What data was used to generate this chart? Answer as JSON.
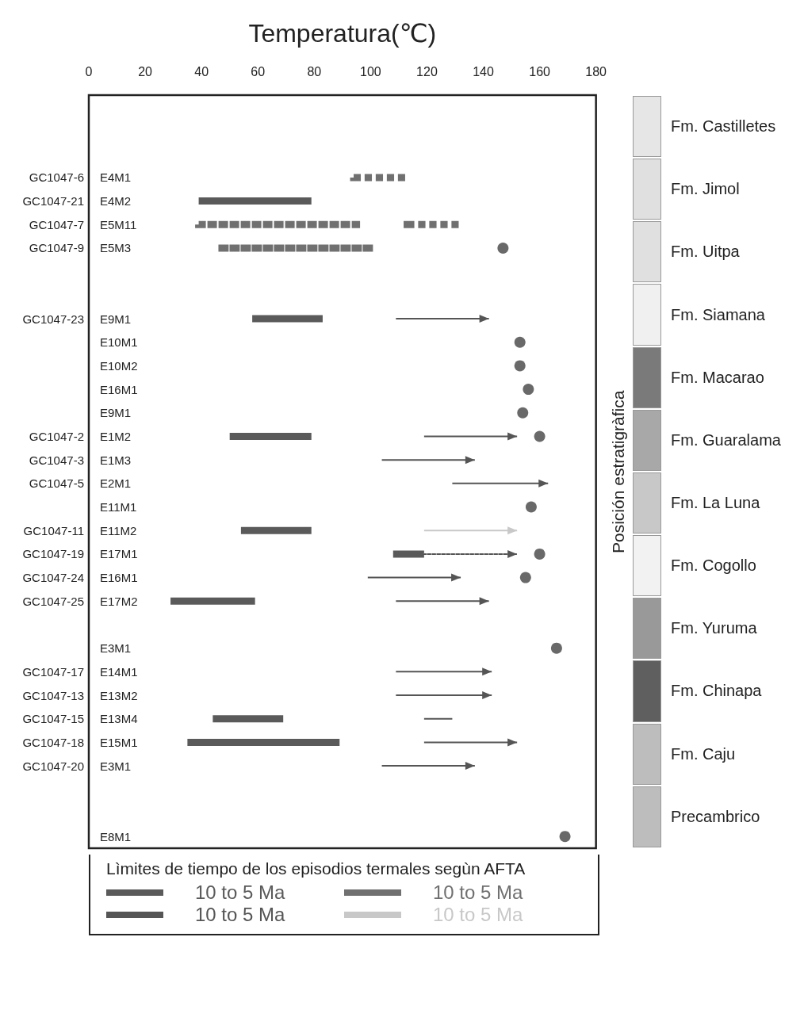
{
  "chart_data": [
    {
      "type": "bar",
      "orientation": "horizontal",
      "xlabel": "Temperatura(℃)",
      "xlim": [
        0,
        180
      ],
      "xticks": [
        0,
        20,
        40,
        60,
        80,
        100,
        120,
        140,
        160,
        180
      ],
      "grid": false,
      "legend": "bottom",
      "legend_title": "Lìmites de tiempo de los episodios termales segùn AFTA",
      "categories": [
        null,
        null,
        null,
        "E4M1",
        "E4M2",
        "E5M11",
        "E5M3",
        null,
        null,
        "E9M1",
        "E10M1",
        "E10M2",
        "E16M1",
        "E9M1",
        "E1M2",
        "E1M3",
        "E2M1",
        "E11M1",
        "E11M2",
        "E17M1",
        "E16M1",
        "E17M2",
        null,
        "E3M1",
        "E14M1",
        "E13M2",
        "E13M4",
        "E15M1",
        "E3M1",
        null,
        null,
        "E8M1"
      ],
      "y2_categories": [
        null,
        null,
        null,
        "GC1047-6",
        "GC1047-21",
        "GC1047-7",
        "GC1047-9",
        null,
        null,
        "GC1047-23",
        null,
        null,
        null,
        null,
        "GC1047-2",
        "GC1047-3",
        "GC1047-5",
        null,
        "GC1047-11",
        "GC1047-19",
        "GC1047-24",
        "GC1047-25",
        null,
        null,
        "GC1047-17",
        "GC1047-13",
        "GC1047-15",
        "GC1047-18",
        "GC1047-20",
        null,
        null,
        null
      ],
      "series": [
        {
          "name": "10 to 5 Ma",
          "color": "#5a5a5a",
          "base": [
            null,
            null,
            null,
            null,
            39,
            null,
            null,
            null,
            null,
            58,
            null,
            null,
            null,
            null,
            50,
            null,
            null,
            null,
            54,
            108,
            null,
            29,
            null,
            null,
            null,
            null,
            44,
            35,
            null,
            null,
            null,
            null
          ],
          "values": [
            null,
            null,
            null,
            null,
            40,
            null,
            null,
            null,
            null,
            25,
            null,
            null,
            null,
            null,
            29,
            null,
            null,
            null,
            25,
            11,
            null,
            30,
            null,
            null,
            null,
            null,
            25,
            54,
            null,
            null,
            null,
            null
          ]
        },
        {
          "name": "10 to 5 Ma",
          "color": "#707070",
          "line_style": "dashed",
          "base": [
            null,
            null,
            null,
            94,
            null,
            39,
            46,
            null,
            null,
            null,
            null,
            null,
            null,
            null,
            null,
            null,
            null,
            null,
            null,
            null,
            null,
            null,
            null,
            null,
            null,
            null,
            null,
            null,
            null,
            null,
            null,
            null
          ],
          "values": [
            null,
            null,
            null,
            17,
            null,
            56,
            55,
            null,
            null,
            null,
            null,
            null,
            null,
            null,
            null,
            null,
            null,
            null,
            null,
            null,
            null,
            null,
            null,
            null,
            null,
            null,
            null,
            null,
            null,
            null,
            null,
            null
          ]
        },
        {
          "name": "10 to 5 Ma",
          "color": "#555555",
          "marker": "triangle",
          "base": [
            null,
            null,
            null,
            null,
            null,
            null,
            null,
            null,
            null,
            109,
            null,
            null,
            null,
            null,
            119,
            104,
            129,
            null,
            null,
            null,
            99,
            109,
            null,
            null,
            109,
            109,
            null,
            119,
            104,
            null,
            null,
            null
          ],
          "values": [
            null,
            null,
            null,
            null,
            null,
            null,
            null,
            null,
            null,
            33,
            null,
            null,
            null,
            null,
            33,
            33,
            34,
            null,
            null,
            null,
            33,
            33,
            null,
            null,
            34,
            34,
            null,
            33,
            33,
            null,
            null,
            null
          ]
        },
        {
          "name": "10 to 5 Ma",
          "color": "#c8c8c8",
          "marker": "triangle",
          "base": [
            null,
            null,
            null,
            null,
            null,
            null,
            null,
            null,
            null,
            null,
            null,
            null,
            null,
            null,
            null,
            null,
            null,
            null,
            119,
            null,
            null,
            null,
            null,
            null,
            null,
            null,
            null,
            null,
            null,
            null,
            null,
            null
          ],
          "values": [
            null,
            null,
            null,
            null,
            null,
            null,
            null,
            null,
            null,
            null,
            null,
            null,
            null,
            null,
            null,
            null,
            null,
            null,
            33,
            null,
            null,
            null,
            null,
            null,
            null,
            null,
            null,
            null,
            null,
            null,
            null,
            null
          ]
        },
        {
          "color": "#707070",
          "line_style": "dashed",
          "base": [
            null,
            null,
            null,
            null,
            null,
            113,
            null,
            null,
            null,
            null,
            null,
            null,
            null,
            null,
            null,
            null,
            null,
            null,
            null,
            null,
            null,
            null,
            null,
            null,
            null,
            null,
            null,
            null,
            null,
            null,
            null,
            null
          ],
          "values": [
            null,
            null,
            null,
            null,
            null,
            17,
            null,
            null,
            null,
            null,
            null,
            null,
            null,
            null,
            null,
            null,
            null,
            null,
            null,
            null,
            null,
            null,
            null,
            null,
            null,
            null,
            null,
            null,
            null,
            null,
            null,
            null
          ]
        },
        {
          "color": "#555555",
          "marker": "triangle",
          "line_style": "dotted",
          "base": [
            null,
            null,
            null,
            null,
            null,
            null,
            null,
            null,
            null,
            null,
            null,
            null,
            null,
            null,
            null,
            null,
            null,
            null,
            null,
            119,
            null,
            null,
            null,
            null,
            null,
            null,
            null,
            null,
            null,
            null,
            null,
            null
          ],
          "values": [
            null,
            null,
            null,
            null,
            null,
            null,
            null,
            null,
            null,
            null,
            null,
            null,
            null,
            null,
            null,
            null,
            null,
            null,
            null,
            33,
            null,
            null,
            null,
            null,
            null,
            null,
            null,
            null,
            null,
            null,
            null,
            null
          ]
        },
        {
          "color": "#555555",
          "marker": "none",
          "base": [
            null,
            null,
            null,
            null,
            null,
            null,
            null,
            null,
            null,
            null,
            null,
            null,
            null,
            null,
            null,
            null,
            null,
            null,
            null,
            null,
            null,
            null,
            null,
            null,
            null,
            null,
            119,
            null,
            null,
            null,
            null,
            null
          ],
          "values": [
            null,
            null,
            null,
            null,
            null,
            null,
            null,
            null,
            null,
            null,
            null,
            null,
            null,
            null,
            null,
            null,
            null,
            null,
            null,
            null,
            null,
            null,
            null,
            null,
            null,
            null,
            10,
            null,
            null,
            null,
            null,
            null
          ]
        },
        {
          "type": "scatter",
          "marker": "circle",
          "color": "#444444",
          "values": [
            null,
            null,
            null,
            null,
            null,
            null,
            147,
            null,
            null,
            null,
            153,
            153,
            156,
            154,
            160,
            null,
            null,
            157,
            null,
            160,
            155,
            null,
            null,
            166,
            null,
            null,
            null,
            null,
            null,
            null,
            null,
            169
          ]
        }
      ]
    },
    {
      "type": "other",
      "ylabel": "Posición estratigràfica",
      "categories": [
        "Fm. Castilletes",
        "Fm. Jimol",
        "Fm. Uitpa",
        "Fm. Siamana",
        "Fm. Macarao",
        "Fm. Guaralama",
        "Fm. La Luna",
        "Fm. Cogollo",
        "Fm. Yuruma",
        "Fm. Chinapa",
        "Fm. Caju",
        "Precambrico"
      ],
      "colors": [
        "#e6e6e6",
        "#e0e0e0",
        "#e0e0e0",
        "#f0f0f0",
        "#7a7a7a",
        "#a8a8a8",
        "#c8c8c8",
        "#f2f2f2",
        "#999999",
        "#5f5f5f",
        "#bdbdbd",
        "#bdbdbd"
      ]
    }
  ]
}
